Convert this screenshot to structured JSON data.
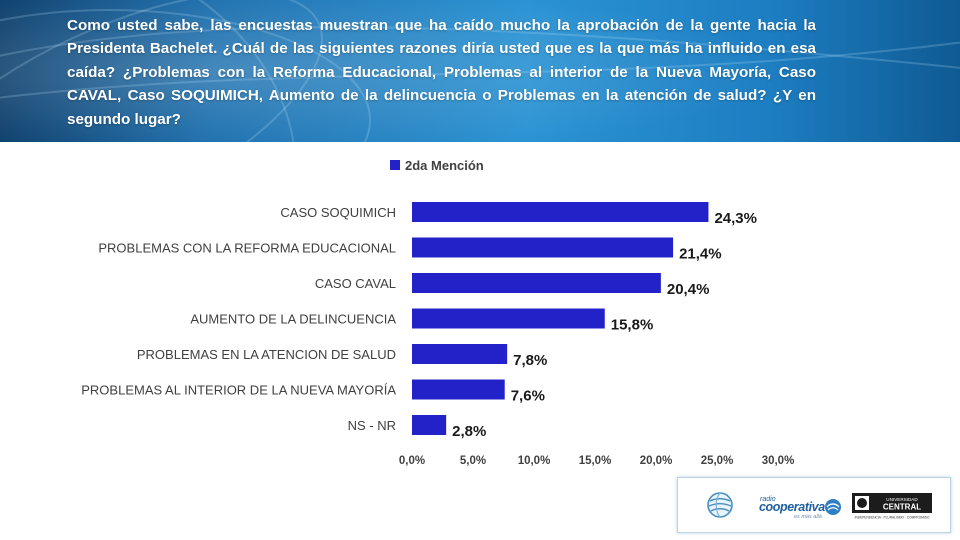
{
  "question": "Como usted sabe, las encuestas muestran que ha caído mucho la aprobación de la gente hacia la Presidenta Bachelet. ¿Cuál de las siguientes razones diría usted que es la que más ha influido en esa caída? ¿Problemas con la Reforma Educacional, Problemas al interior de la Nueva Mayoría, Caso CAVAL, Caso SOQUIMICH, Aumento de la delincuencia o Problemas en la atención de salud?   ¿Y en segundo lugar?",
  "colors": {
    "bar": "#2222c8",
    "banner": "#1f7fc2",
    "text": "#404040",
    "value_text": "#1a1a1a"
  },
  "chart_data": {
    "type": "bar",
    "orientation": "horizontal",
    "categories": [
      "CASO SOQUIMICH",
      "PROBLEMAS CON LA REFORMA EDUCACIONAL",
      "CASO CAVAL",
      "AUMENTO DE LA DELINCUENCIA",
      "PROBLEMAS EN LA ATENCION DE SALUD",
      "PROBLEMAS AL INTERIOR DE LA NUEVA MAYORÍA",
      "NS - NR"
    ],
    "series": [
      {
        "name": "2da Mención",
        "values": [
          24.3,
          21.4,
          20.4,
          15.8,
          7.8,
          7.6,
          2.8
        ],
        "labels": [
          "24,3%",
          "21,4%",
          "20,4%",
          "15,8%",
          "7,8%",
          "7,6%",
          "2,8%"
        ]
      }
    ],
    "xlim": [
      0,
      30
    ],
    "xticks": [
      "0,0%",
      "5,0%",
      "10,0%",
      "15,0%",
      "20,0%",
      "25,0%",
      "30,0%"
    ],
    "grid": false,
    "legend_position": "top"
  },
  "logos": {
    "radio_small": "radio",
    "radio_name": "cooperativa",
    "radio_tagline": "es más allá",
    "university_top": "UNIVERSIDAD",
    "university_name": "CENTRAL",
    "university_motto": "INDEPENDENCIA · PLURALISMO · COMPROMISO"
  }
}
